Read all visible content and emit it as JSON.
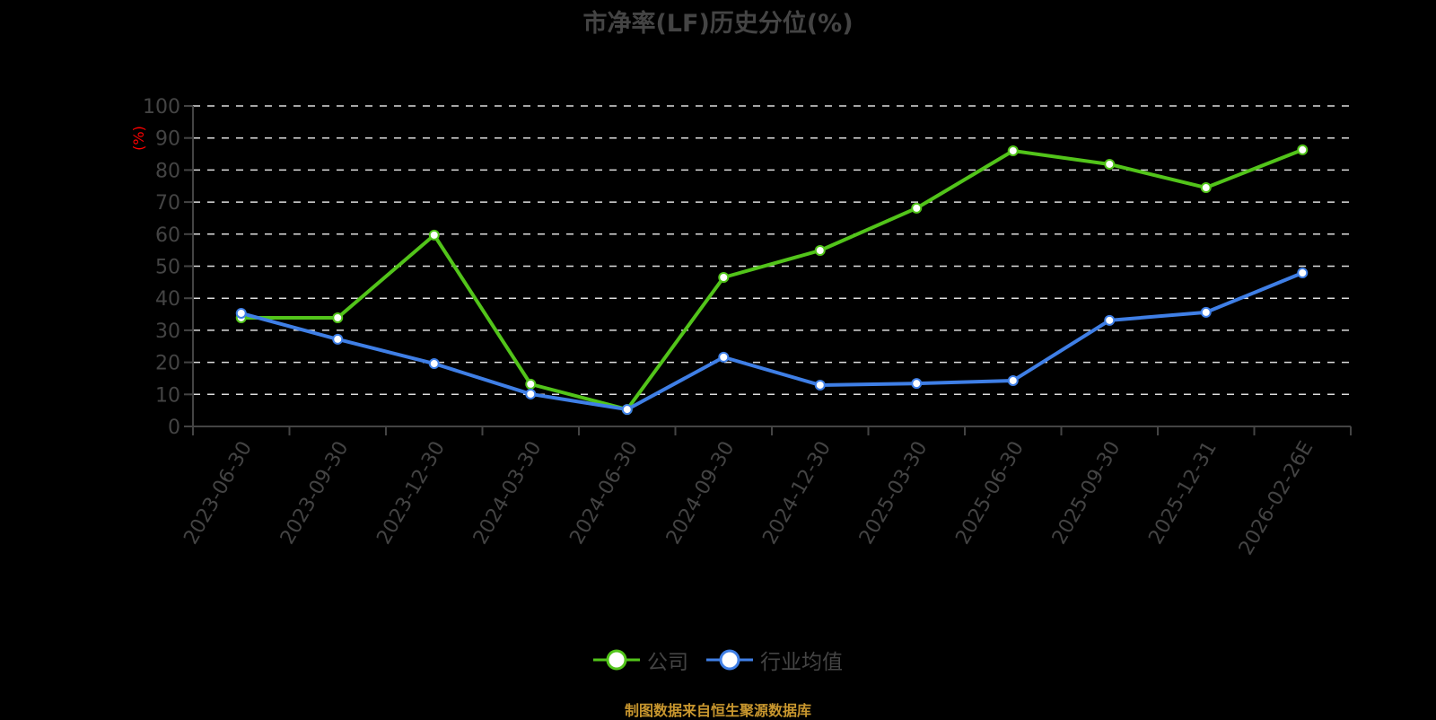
{
  "title": "市净率(LF)历史分位(%)",
  "y_unit_label": "(%)",
  "legend": [
    {
      "name": "公司",
      "color": "#52c41a"
    },
    {
      "name": "行业均值",
      "color": "#3f7fe6"
    }
  ],
  "source": "制图数据来自恒生聚源数据库",
  "colors": {
    "background": "#000000",
    "company": "#52c41a",
    "industry": "#3f7fe6",
    "axis": "#444444",
    "grid": "#dddddd",
    "unit_label": "#ff0000",
    "source": "#c8962e"
  },
  "chart_data": {
    "type": "line",
    "title": "市净率(LF)历史分位(%)",
    "xlabel": "",
    "ylabel": "(%)",
    "ylim": [
      0,
      100
    ],
    "yticks": [
      0,
      10,
      20,
      30,
      40,
      50,
      60,
      70,
      80,
      90,
      100
    ],
    "grid": true,
    "legend_position": "bottom",
    "categories": [
      "2023-06-30",
      "2023-09-30",
      "2023-12-30",
      "2024-03-30",
      "2024-06-30",
      "2024-09-30",
      "2024-12-30",
      "2025-03-30",
      "2025-06-30",
      "2025-09-30",
      "2025-12-31",
      "2026-02-26E"
    ],
    "series": [
      {
        "name": "公司",
        "values": [
          33.9,
          33.9,
          59.7,
          13.2,
          5.3,
          46.5,
          54.9,
          68.1,
          86.0,
          81.8,
          74.5,
          86.3
        ]
      },
      {
        "name": "行业均值",
        "values": [
          35.3,
          27.2,
          19.6,
          10.1,
          5.3,
          21.6,
          12.9,
          13.4,
          14.3,
          33.1,
          35.6,
          47.9
        ]
      }
    ]
  }
}
